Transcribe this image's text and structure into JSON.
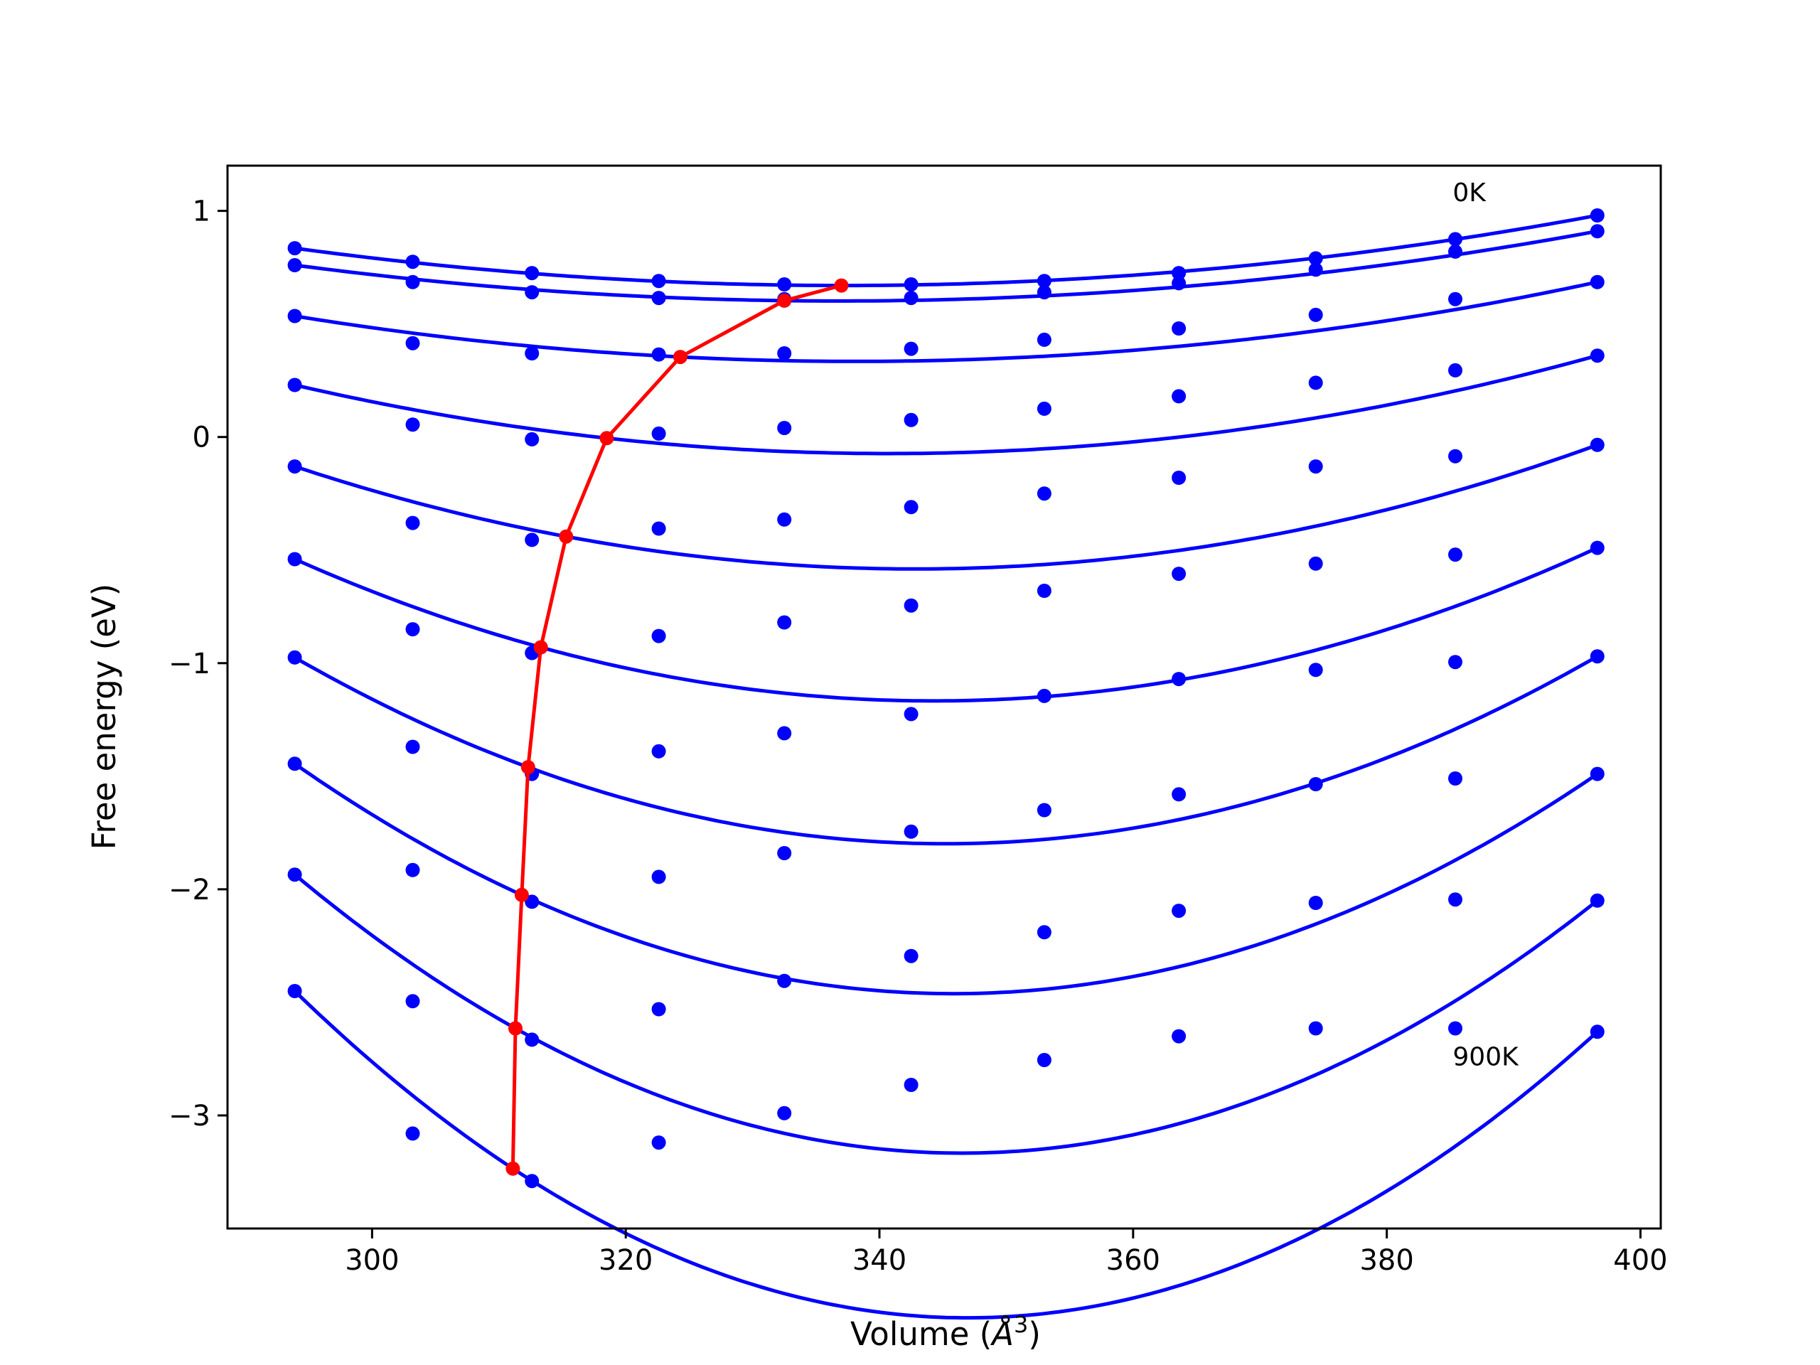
{
  "chart_data": {
    "type": "line",
    "xlabel": "Volume (",
    "xlabel_symbol": "Å",
    "xlabel_exp": "3",
    "xlabel_close": ")",
    "ylabel": "Free energy (eV)",
    "xlim": [
      288.6,
      401.6
    ],
    "ylim": [
      -3.5,
      1.2
    ],
    "xticks": [
      300,
      320,
      340,
      360,
      380,
      400
    ],
    "yticks": [
      -3,
      -2,
      -1,
      0,
      1
    ],
    "xtick_labels": [
      "300",
      "320",
      "340",
      "360",
      "380",
      "400"
    ],
    "ytick_labels": [
      "−3",
      "−2",
      "−1",
      "0",
      "1"
    ],
    "grid": false,
    "colors": {
      "fit": "#0000ff",
      "points": "#0000ff",
      "minimum_path": "#ff0000"
    },
    "annotations": [
      {
        "text": "0K",
        "x": 385.2,
        "y": 1.08
      },
      {
        "text": "900K",
        "x": 385.2,
        "y": -2.74
      }
    ],
    "volumes": [
      293.9,
      303.2,
      312.6,
      322.6,
      332.5,
      342.5,
      353.0,
      363.6,
      374.4,
      385.4,
      396.6
    ],
    "isotherms": [
      {
        "points": [
          0.835,
          0.775,
          0.725,
          0.69,
          0.675,
          0.675,
          0.69,
          0.725,
          0.79,
          0.875,
          0.98
        ],
        "fit_min": [
          337.0,
          0.67
        ]
      },
      {
        "points": [
          0.76,
          0.685,
          0.64,
          0.615,
          0.61,
          0.615,
          0.64,
          0.68,
          0.74,
          0.82,
          0.91
        ],
        "fit_min": [
          332.5,
          0.603
        ]
      },
      {
        "points": [
          0.535,
          0.415,
          0.37,
          0.365,
          0.37,
          0.39,
          0.43,
          0.48,
          0.54,
          0.61,
          0.685
        ],
        "fit_min": [
          324.3,
          0.354
        ]
      },
      {
        "points": [
          0.23,
          0.055,
          -0.01,
          0.015,
          0.04,
          0.075,
          0.125,
          0.18,
          0.24,
          0.295,
          0.36
        ],
        "fit_min": [
          318.5,
          -0.005
        ]
      },
      {
        "points": [
          -0.13,
          -0.38,
          -0.455,
          -0.405,
          -0.365,
          -0.31,
          -0.25,
          -0.18,
          -0.13,
          -0.085,
          -0.035
        ],
        "fit_min": [
          315.3,
          -0.44
        ]
      },
      {
        "points": [
          -0.54,
          -0.85,
          -0.955,
          -0.88,
          -0.82,
          -0.745,
          -0.68,
          -0.605,
          -0.56,
          -0.52,
          -0.49
        ],
        "fit_min": [
          313.3,
          -0.93
        ]
      },
      {
        "points": [
          -0.975,
          -1.37,
          -1.49,
          -1.39,
          -1.31,
          -1.225,
          -1.145,
          -1.07,
          -1.03,
          -0.995,
          -0.97
        ],
        "fit_min": [
          312.3,
          -1.46
        ]
      },
      {
        "points": [
          -1.445,
          -1.915,
          -2.055,
          -1.945,
          -1.84,
          -1.745,
          -1.65,
          -1.58,
          -1.535,
          -1.51,
          -1.49
        ],
        "fit_min": [
          311.8,
          -2.025
        ]
      },
      {
        "points": [
          -1.935,
          -2.495,
          -2.665,
          -2.53,
          -2.405,
          -2.295,
          -2.19,
          -2.095,
          -2.06,
          -2.045,
          -2.05
        ],
        "fit_min": [
          311.3,
          -2.615
        ]
      },
      {
        "points": [
          -2.45,
          -3.08,
          -3.29,
          -3.12,
          -2.99,
          -2.865,
          -2.755,
          -2.65,
          -2.615,
          -2.615,
          -2.63
        ],
        "fit_min": [
          311.1,
          -3.235
        ]
      }
    ],
    "minimum_path": {
      "x": [
        337.0,
        332.5,
        324.3,
        318.5,
        315.3,
        313.3,
        312.3,
        311.8,
        311.3,
        311.1
      ],
      "y": [
        0.67,
        0.603,
        0.354,
        -0.005,
        -0.44,
        -0.93,
        -1.46,
        -2.025,
        -2.615,
        -3.235
      ]
    }
  }
}
